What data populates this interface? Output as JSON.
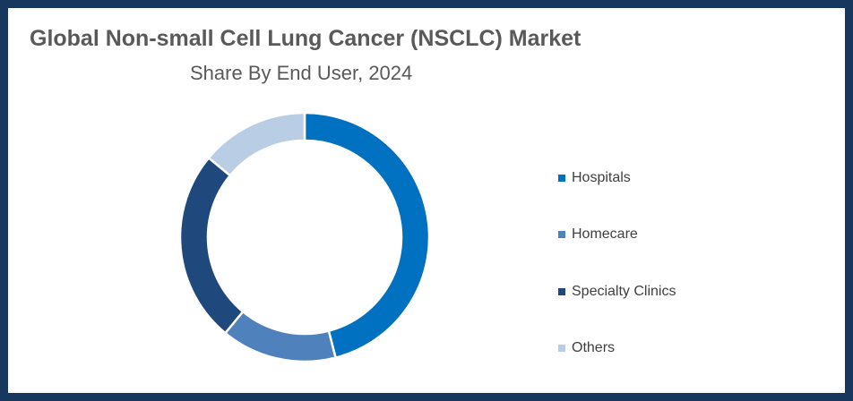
{
  "chart_data": {
    "type": "pie",
    "donut": true,
    "title": "Global Non-small Cell Lung Cancer (NSCLC) Market",
    "subtitle": "Share By End User, 2024",
    "categories": [
      "Hospitals",
      "Homecare",
      "Specialty Clinics",
      "Others"
    ],
    "values": [
      46,
      15,
      25,
      14
    ],
    "colors": [
      "#0070c0",
      "#4f81bd",
      "#1f497d",
      "#b9cde5"
    ],
    "legend_position": "right"
  }
}
